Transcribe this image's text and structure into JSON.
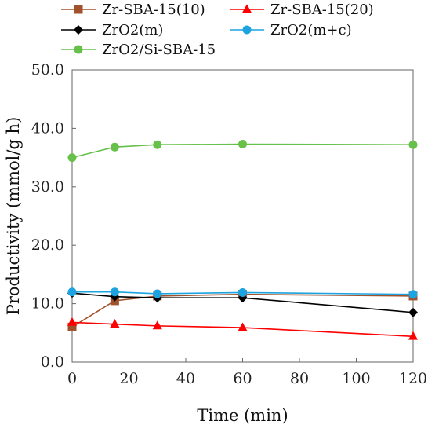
{
  "chart_data": {
    "type": "line",
    "title": "",
    "xlabel": "Time (min)",
    "ylabel": "Productivity (mmol/g h)",
    "xlim": [
      0,
      120
    ],
    "ylim": [
      0,
      50
    ],
    "x_ticks": [
      "0",
      "20",
      "40",
      "60",
      "80",
      "100",
      "120"
    ],
    "y_ticks": [
      "0.0",
      "10.0",
      "20.0",
      "30.0",
      "40.0",
      "50.0"
    ],
    "grid": false,
    "legend_position": "top",
    "series": [
      {
        "name": "Zr-SBA-15(10)",
        "color": "#a0522d",
        "marker": "square",
        "x": [
          0,
          15,
          30,
          60,
          120
        ],
        "y": [
          6.0,
          10.5,
          11.3,
          11.6,
          11.3
        ]
      },
      {
        "name": "Zr-SBA-15(20)",
        "color": "#ff0000",
        "marker": "triangle",
        "x": [
          0,
          15,
          30,
          60,
          120
        ],
        "y": [
          6.8,
          6.5,
          6.2,
          5.9,
          4.4
        ]
      },
      {
        "name": "ZrO2(m)",
        "color": "#000000",
        "marker": "diamond",
        "x": [
          0,
          15,
          30,
          60,
          120
        ],
        "y": [
          11.8,
          11.2,
          11.0,
          11.0,
          8.5
        ]
      },
      {
        "name": "ZrO2(m+c)",
        "color": "#1ca3e0",
        "marker": "circle",
        "x": [
          0,
          15,
          30,
          60,
          120
        ],
        "y": [
          12.0,
          12.0,
          11.7,
          11.9,
          11.6
        ]
      },
      {
        "name": "ZrO2/Si-SBA-15",
        "color": "#66c04a",
        "marker": "circle",
        "x": [
          0,
          15,
          30,
          60,
          120
        ],
        "y": [
          35.0,
          36.8,
          37.2,
          37.3,
          37.2
        ]
      }
    ]
  }
}
